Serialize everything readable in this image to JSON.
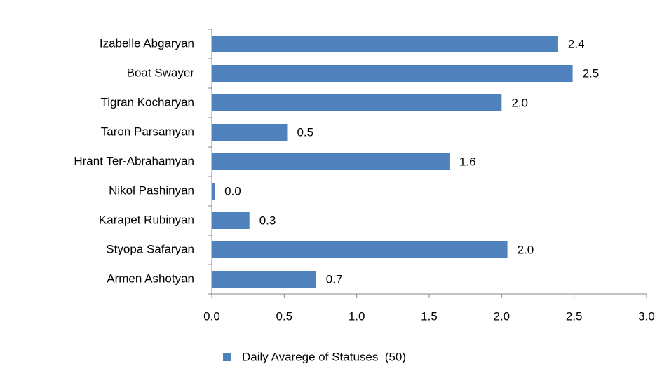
{
  "chart_data": {
    "type": "hbar",
    "categories": [
      "Izabelle Abgaryan",
      "Boat Swayer",
      "Tigran Kocharyan",
      "Taron Parsamyan",
      "Hrant Ter-Abrahamyan",
      "Nikol Pashinyan",
      "Karapet Rubinyan",
      "Styopa Safaryan",
      "Armen Ashotyan"
    ],
    "series": [
      {
        "name": "Daily Avarege of Statuses  (50)",
        "color": "#4f81bd",
        "values": [
          2.39,
          2.49,
          2.0,
          0.52,
          1.64,
          0.02,
          0.26,
          2.04,
          0.72
        ],
        "value_labels": [
          "2.4",
          "2.5",
          "2.0",
          "0.5",
          "1.6",
          "0.0",
          "0.3",
          "2.0",
          "0.7"
        ]
      }
    ],
    "xlim": [
      0,
      3
    ],
    "xticks": [
      {
        "value": 0,
        "label": "0.0"
      },
      {
        "value": 0.5,
        "label": "0.5"
      },
      {
        "value": 1,
        "label": "1.0"
      },
      {
        "value": 1.5,
        "label": "1.5"
      },
      {
        "value": 2,
        "label": "2.0"
      },
      {
        "value": 2.5,
        "label": "2.5"
      },
      {
        "value": 3,
        "label": "3.0"
      }
    ],
    "grid": false,
    "legend": "bottom"
  }
}
